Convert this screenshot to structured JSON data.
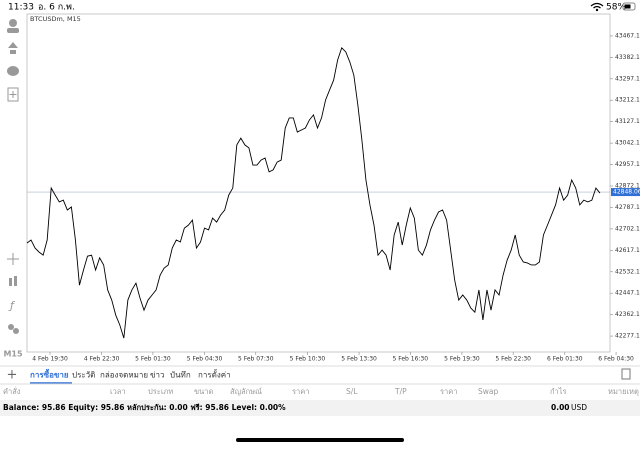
{
  "status_bar": {
    "time": "11:33",
    "date": "อ. 6 ก.พ.",
    "battery": "58%"
  },
  "toolbar": {
    "timeframe": "M15"
  },
  "chart_data": {
    "type": "line",
    "title": "BTCUSDm, M15",
    "color": "#000000",
    "values": [
      42646,
      42658,
      42626,
      42610,
      42598,
      42658,
      42864,
      42836,
      42809,
      42816,
      42777,
      42789,
      42658,
      42479,
      42539,
      42594,
      42598,
      42539,
      42587,
      42559,
      42460,
      42420,
      42360,
      42321,
      42269,
      42420,
      42460,
      42487,
      42428,
      42380,
      42420,
      42440,
      42460,
      42519,
      42547,
      42559,
      42626,
      42658,
      42650,
      42705,
      42717,
      42737,
      42626,
      42650,
      42705,
      42698,
      42745,
      42729,
      42757,
      42777,
      42836,
      42864,
      43035,
      43062,
      43035,
      43023,
      42955,
      42955,
      42975,
      42983,
      42928,
      42936,
      42967,
      42975,
      43102,
      43142,
      43142,
      43086,
      43094,
      43102,
      43134,
      43154,
      43102,
      43142,
      43213,
      43253,
      43292,
      43372,
      43420,
      43404,
      43364,
      43312,
      43193,
      43055,
      42896,
      42797,
      42717,
      42598,
      42618,
      42598,
      42539,
      42678,
      42729,
      42638,
      42717,
      42785,
      42745,
      42618,
      42598,
      42638,
      42698,
      42737,
      42769,
      42777,
      42737,
      42618,
      42499,
      42420,
      42440,
      42420,
      42388,
      42372,
      42460,
      42341,
      42460,
      42380,
      42460,
      42440,
      42519,
      42578,
      42618,
      42678,
      42598,
      42571,
      42567,
      42559,
      42559,
      42571,
      42678,
      42717,
      42757,
      42797,
      42864,
      42816,
      42836,
      42896,
      42864,
      42797,
      42816,
      42809,
      42816,
      42864,
      42844
    ],
    "xlim": [
      0,
      144
    ],
    "xticks": [
      {
        "value": 5.7,
        "label": "4 Feb 19:30"
      },
      {
        "value": 18.5,
        "label": "4 Feb 22:30"
      },
      {
        "value": 31.2,
        "label": "5 Feb 01:30"
      },
      {
        "value": 44,
        "label": "5 Feb 04:30"
      },
      {
        "value": 56.7,
        "label": "5 Feb 07:30"
      },
      {
        "value": 69.5,
        "label": "5 Feb 10:30"
      },
      {
        "value": 82.3,
        "label": "5 Feb 13:30"
      },
      {
        "value": 95,
        "label": "5 Feb 16:30"
      },
      {
        "value": 107.8,
        "label": "5 Feb 19:30"
      },
      {
        "value": 120.5,
        "label": "5 Feb 22:30"
      },
      {
        "value": 133.3,
        "label": "6 Feb 01:30"
      },
      {
        "value": 146,
        "label": "6 Feb 04:30"
      }
    ],
    "ylim": [
      42214,
      43554
    ],
    "yticks": [
      {
        "value": 43467.1,
        "label": "43467.10"
      },
      {
        "value": 43382.1,
        "label": "43382.10"
      },
      {
        "value": 43297.1,
        "label": "43297.10"
      },
      {
        "value": 43212.1,
        "label": "43212.10"
      },
      {
        "value": 43127.1,
        "label": "43127.10"
      },
      {
        "value": 43042.1,
        "label": "43042.10"
      },
      {
        "value": 42957.1,
        "label": "42957.10"
      },
      {
        "value": 42872.1,
        "label": "42872.10"
      },
      {
        "value": 42787.1,
        "label": "42787.10"
      },
      {
        "value": 42702.1,
        "label": "42702.10"
      },
      {
        "value": 42617.1,
        "label": "42617.10"
      },
      {
        "value": 42532.1,
        "label": "42532.10"
      },
      {
        "value": 42447.1,
        "label": "42447.10"
      },
      {
        "value": 42362.1,
        "label": "42362.10"
      },
      {
        "value": 42277.1,
        "label": "42277.10"
      }
    ],
    "current_price": 42848.06,
    "current_price_color": "#2f6fd6"
  },
  "tabs": {
    "items": [
      "การซื้อขาย",
      "ประวัติ",
      "กล่องจดหมาย",
      "ข่าว",
      "บันทึก",
      "การตั้งค่า"
    ],
    "active": 0
  },
  "terminal": {
    "columns": [
      "คำสั่ง",
      "เวลา",
      "ประเภท",
      "ขนาด",
      "สัญลักษณ์",
      "ราคา",
      "S/L",
      "T/P",
      "ราคา",
      "Swap",
      "กำไร",
      "หมายเหตุ"
    ],
    "balance_line": "Balance: 95.86 Equity: 95.86 หลักประกัน: 0.00 ฟรี: 95.86 Level: 0.00%",
    "profit": "0.00",
    "currency": "USD"
  }
}
